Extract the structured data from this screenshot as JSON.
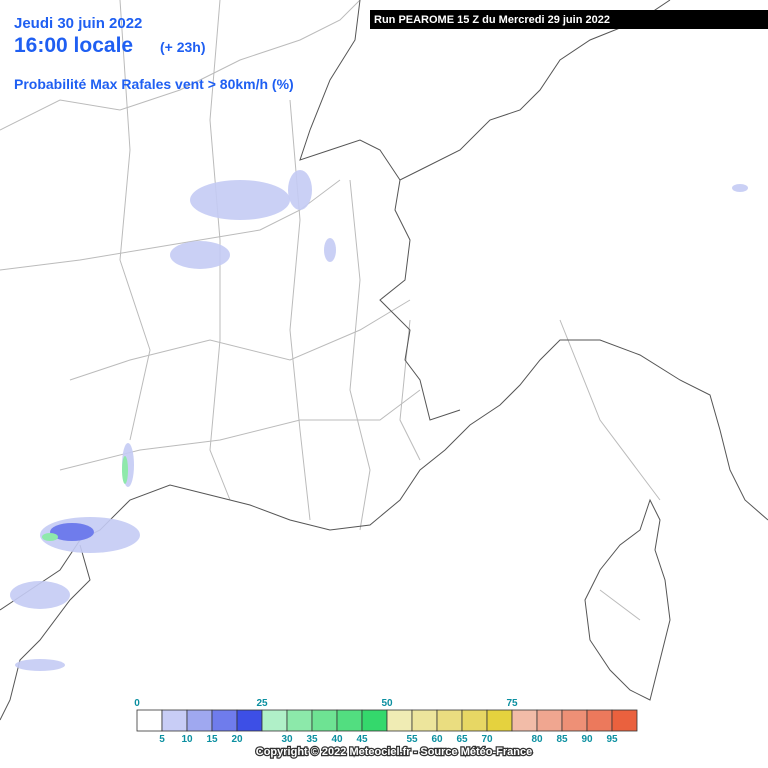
{
  "header": {
    "date": "Jeudi 30 juin 2022",
    "time": "16:00 locale",
    "lead": "(+ 23h)",
    "product": "Probabilité Max Rafales vent > 80km/h (%)",
    "run": "Run PEAROME 15 Z du Mercredi 29 juin 2022"
  },
  "legend": {
    "colors": [
      "#ffffff",
      "#c8cdf6",
      "#9fa8f0",
      "#6f7cec",
      "#3d4fe6",
      "#b0f0c8",
      "#8ce9aa",
      "#6ee393",
      "#52de80",
      "#34d86c",
      "#f0ecb4",
      "#ede59c",
      "#eadd80",
      "#e7d764",
      "#e5d23e",
      "#f2bca8",
      "#f0a690",
      "#ee9076",
      "#ec795c",
      "#ea613e"
    ],
    "top_labels": [
      "0",
      "25",
      "50",
      "75"
    ],
    "bottom_labels": [
      "5",
      "10",
      "15",
      "20",
      "30",
      "35",
      "40",
      "45",
      "55",
      "60",
      "65",
      "70",
      "80",
      "85",
      "90",
      "95"
    ]
  },
  "footer": {
    "copyright": "Copyright © 2022 Meteociel.fr - Source Météo-France"
  }
}
